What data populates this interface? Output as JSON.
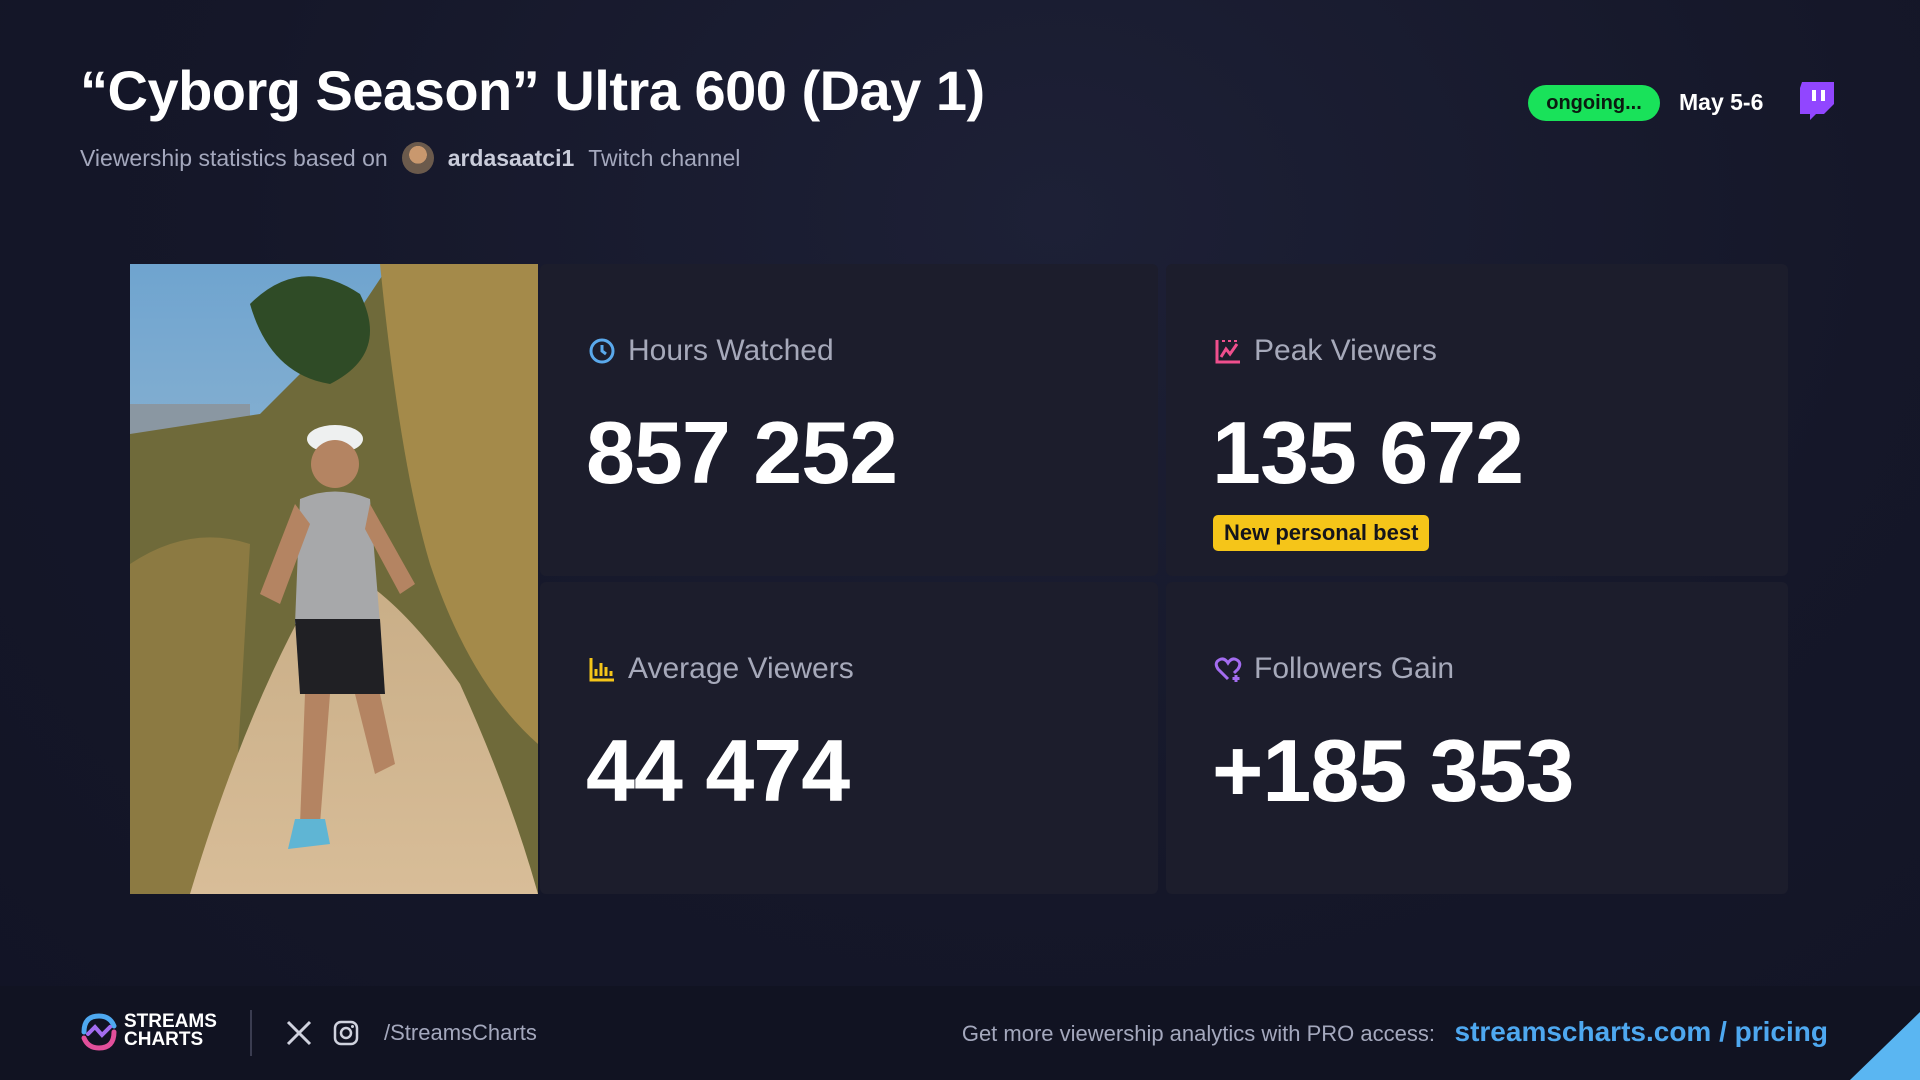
{
  "header": {
    "title": "“Cyborg Season” Ultra 600 (Day 1)",
    "subtitle_prefix": "Viewership statistics based on",
    "channel": "ardasaatci1",
    "subtitle_suffix": "Twitch channel",
    "status": "ongoing...",
    "date": "May 5-6"
  },
  "stats": [
    {
      "label": "Hours Watched",
      "value": "857 252"
    },
    {
      "label": "Peak Viewers",
      "value": "135 672",
      "badge": "New personal best"
    },
    {
      "label": "Average Viewers",
      "value": "44 474"
    },
    {
      "label": "Followers Gain",
      "value": "+185 353"
    }
  ],
  "footer": {
    "logo_line1": "STREAMS",
    "logo_line2": "CHARTS",
    "handle": "/StreamsCharts",
    "cta": "Get more viewership analytics with PRO access:",
    "link": "streamscharts.com / pricing"
  }
}
